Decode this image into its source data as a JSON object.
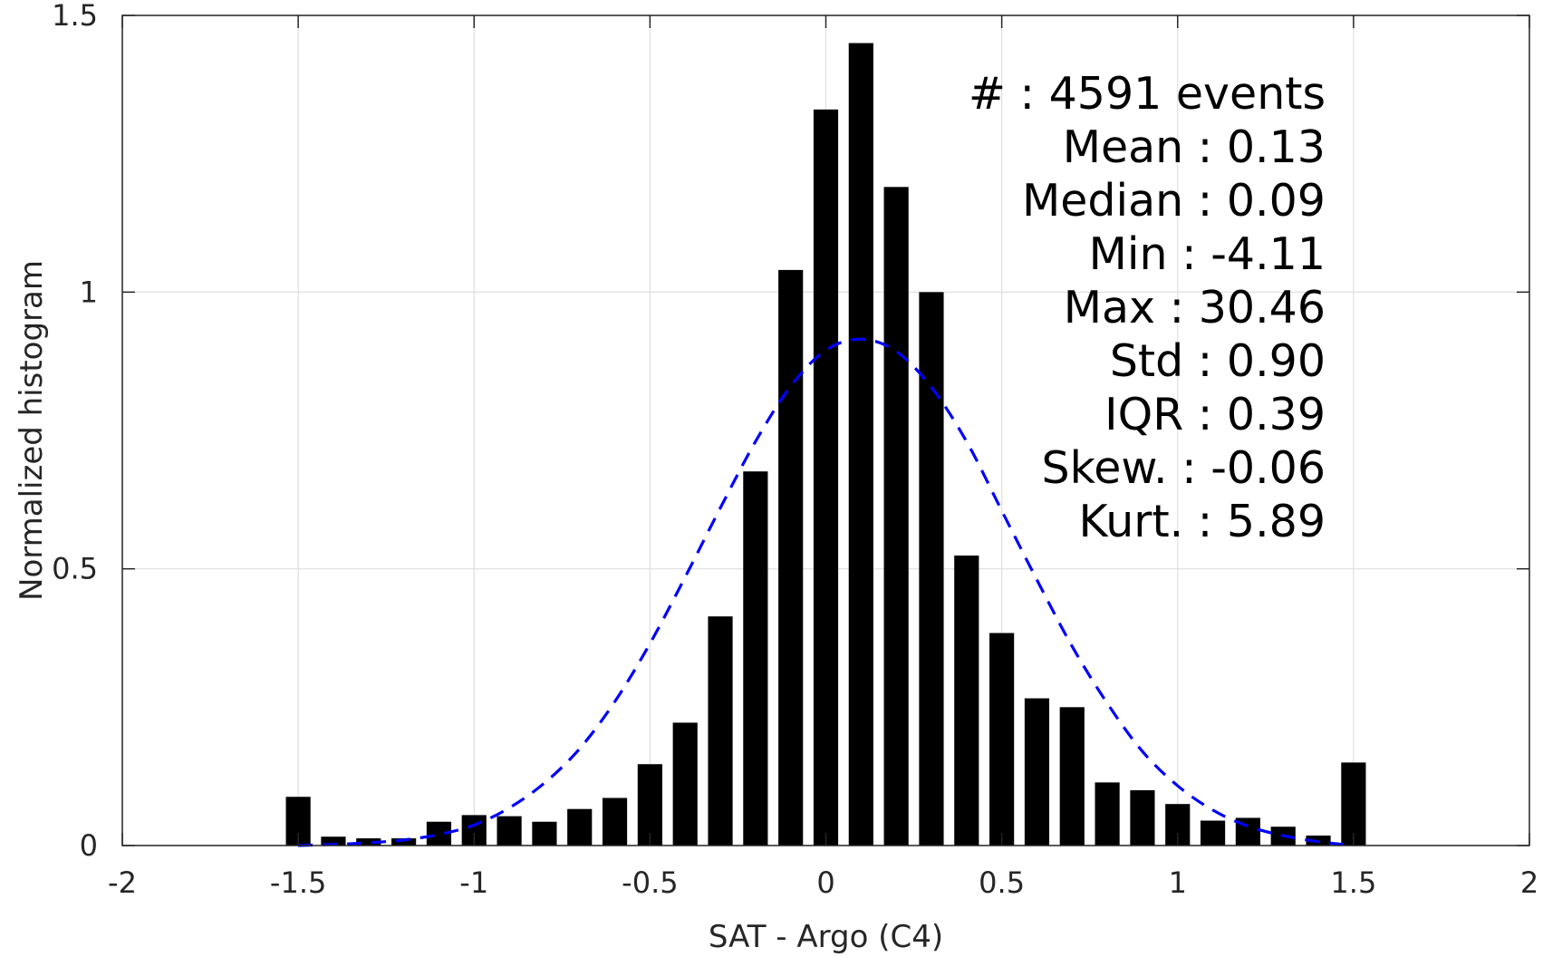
{
  "chart_data": {
    "type": "bar",
    "title": "",
    "xlabel": "SAT - Argo (C4)",
    "ylabel": "Normalized histogram",
    "xlim": [
      -2,
      2
    ],
    "ylim": [
      0,
      1.5
    ],
    "grid": true,
    "bar_color": "#000000",
    "fit_color": "#0000ff",
    "x_ticks": [
      {
        "value": -2,
        "label": "-2"
      },
      {
        "value": -1.5,
        "label": "-1.5"
      },
      {
        "value": -1,
        "label": "-1"
      },
      {
        "value": -0.5,
        "label": "-0.5"
      },
      {
        "value": 0,
        "label": "0"
      },
      {
        "value": 0.5,
        "label": "0.5"
      },
      {
        "value": 1,
        "label": "1"
      },
      {
        "value": 1.5,
        "label": "1.5"
      },
      {
        "value": 2,
        "label": "2"
      }
    ],
    "y_ticks": [
      {
        "value": 0,
        "label": "0"
      },
      {
        "value": 0.5,
        "label": "0.5"
      },
      {
        "value": 1,
        "label": "1"
      },
      {
        "value": 1.5,
        "label": "1.5"
      }
    ],
    "bar_width": 0.07,
    "bars": [
      {
        "x": -1.5,
        "y": 0.088
      },
      {
        "x": -1.4,
        "y": 0.016
      },
      {
        "x": -1.3,
        "y": 0.013
      },
      {
        "x": -1.2,
        "y": 0.013
      },
      {
        "x": -1.1,
        "y": 0.043
      },
      {
        "x": -1.0,
        "y": 0.055
      },
      {
        "x": -0.9,
        "y": 0.053
      },
      {
        "x": -0.8,
        "y": 0.043
      },
      {
        "x": -0.7,
        "y": 0.066
      },
      {
        "x": -0.6,
        "y": 0.086
      },
      {
        "x": -0.5,
        "y": 0.147
      },
      {
        "x": -0.4,
        "y": 0.222
      },
      {
        "x": -0.3,
        "y": 0.414
      },
      {
        "x": -0.2,
        "y": 0.676
      },
      {
        "x": -0.1,
        "y": 1.04
      },
      {
        "x": 0.0,
        "y": 1.33
      },
      {
        "x": 0.1,
        "y": 1.45
      },
      {
        "x": 0.2,
        "y": 1.19
      },
      {
        "x": 0.3,
        "y": 1.0
      },
      {
        "x": 0.4,
        "y": 0.524
      },
      {
        "x": 0.5,
        "y": 0.384
      },
      {
        "x": 0.6,
        "y": 0.266
      },
      {
        "x": 0.7,
        "y": 0.25
      },
      {
        "x": 0.8,
        "y": 0.114
      },
      {
        "x": 0.9,
        "y": 0.1
      },
      {
        "x": 1.0,
        "y": 0.075
      },
      {
        "x": 1.1,
        "y": 0.045
      },
      {
        "x": 1.2,
        "y": 0.05
      },
      {
        "x": 1.3,
        "y": 0.034
      },
      {
        "x": 1.4,
        "y": 0.018
      },
      {
        "x": 1.5,
        "y": 0.15
      }
    ],
    "fit_curve": {
      "style": "dashed",
      "x": [
        -1.5,
        -1.4,
        -1.3,
        -1.2,
        -1.1,
        -1.0,
        -0.9,
        -0.8,
        -0.7,
        -0.6,
        -0.5,
        -0.4,
        -0.3,
        -0.2,
        -0.1,
        0.0,
        0.1,
        0.2,
        0.3,
        0.4,
        0.5,
        0.6,
        0.7,
        0.8,
        0.9,
        1.0,
        1.1,
        1.2,
        1.3,
        1.4,
        1.5
      ],
      "y": [
        0.0,
        0.002,
        0.005,
        0.01,
        0.02,
        0.037,
        0.068,
        0.113,
        0.175,
        0.26,
        0.365,
        0.485,
        0.61,
        0.73,
        0.83,
        0.895,
        0.915,
        0.893,
        0.828,
        0.73,
        0.605,
        0.48,
        0.36,
        0.257,
        0.17,
        0.108,
        0.064,
        0.035,
        0.018,
        0.007,
        0.0
      ]
    },
    "stats": [
      {
        "key": "#",
        "value": ": 4591 events"
      },
      {
        "key": "Mean",
        "value": ": 0.13"
      },
      {
        "key": "Median",
        "value": ": 0.09"
      },
      {
        "key": "Min",
        "value": ": -4.11"
      },
      {
        "key": "Max",
        "value": ": 30.46"
      },
      {
        "key": "Std",
        "value": ": 0.90"
      },
      {
        "key": "IQR",
        "value": ": 0.39"
      },
      {
        "key": "Skew.",
        "value": ": -0.06"
      },
      {
        "key": "Kurt.",
        "value": ": 5.89"
      }
    ]
  }
}
